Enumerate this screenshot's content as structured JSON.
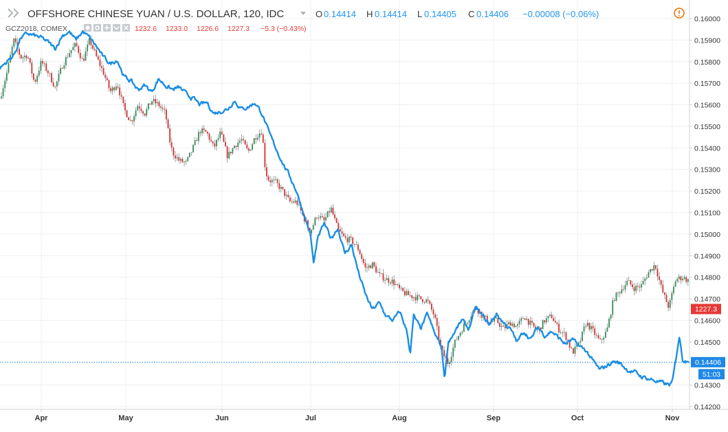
{
  "colors": {
    "primary_line": "#1a8ee3",
    "gold_up": "#2e8b57",
    "gold_down": "#d32f2f",
    "gold_wick": "#7a7a7a",
    "grid": "#eef0f2",
    "axis": "#cfd2d6",
    "cur_price_tag": "#1e88e5",
    "gold_tag": "#e53935",
    "warning": "#ef6c00"
  },
  "header": {
    "symbol": "OFFSHORE CHINESE YUAN / U.S. DOLLAR, 120, IDC",
    "o_label": "O",
    "o_value": "0.14414",
    "h_label": "H",
    "h_value": "0.14414",
    "l_label": "L",
    "l_value": "0.14405",
    "c_label": "C",
    "c_value": "0.14406",
    "change": "−0.00008 (−0.06%)"
  },
  "overlay": {
    "symbol": "GCZ2018, COMEX",
    "open": "1232.6",
    "high": "1233.0",
    "low": "1226.6",
    "close": "1227.3",
    "change": "−5.3 (−0.43%)"
  },
  "tags": {
    "gold_last": "1227.3",
    "current_price": "0.14406",
    "countdown": "51:03"
  },
  "chart_data": {
    "type": "line",
    "x_axis_labels": [
      "Apr",
      "May",
      "Jun",
      "Jul",
      "Aug",
      "Sep",
      "Oct",
      "Nov"
    ],
    "y_ticks": [
      "0.16000",
      "0.15900",
      "0.15800",
      "0.15700",
      "0.15600",
      "0.15500",
      "0.15400",
      "0.15300",
      "0.15200",
      "0.15100",
      "0.15000",
      "0.14900",
      "0.14800",
      "0.14700",
      "0.14600",
      "0.14500",
      "0.14400",
      "0.14300",
      "0.14200"
    ],
    "ylim": [
      0.142,
      0.16
    ],
    "current_value": 0.14406,
    "grid": true,
    "series": [
      {
        "name": "OFFSHORE CHINESE YUAN / U.S. DOLLAR, 120, IDC",
        "style": "line",
        "points": [
          [
            0,
            0.1577
          ],
          [
            10,
            0.158
          ],
          [
            20,
            0.1583
          ],
          [
            30,
            0.1591
          ],
          [
            40,
            0.1593
          ],
          [
            50,
            0.1592
          ],
          [
            60,
            0.1591
          ],
          [
            70,
            0.1589
          ],
          [
            80,
            0.1586
          ],
          [
            90,
            0.1592
          ],
          [
            100,
            0.1594
          ],
          [
            110,
            0.159
          ],
          [
            120,
            0.1594
          ],
          [
            130,
            0.1591
          ],
          [
            140,
            0.1587
          ],
          [
            150,
            0.1582
          ],
          [
            160,
            0.1579
          ],
          [
            170,
            0.1581
          ],
          [
            180,
            0.1573
          ],
          [
            190,
            0.1571
          ],
          [
            200,
            0.1567
          ],
          [
            210,
            0.1569
          ],
          [
            220,
            0.1566
          ],
          [
            230,
            0.1572
          ],
          [
            240,
            0.1569
          ],
          [
            250,
            0.1567
          ],
          [
            260,
            0.1568
          ],
          [
            270,
            0.1565
          ],
          [
            280,
            0.1563
          ],
          [
            290,
            0.156
          ],
          [
            300,
            0.1561
          ],
          [
            310,
            0.1556
          ],
          [
            320,
            0.1557
          ],
          [
            330,
            0.1558
          ],
          [
            340,
            0.1562
          ],
          [
            350,
            0.1558
          ],
          [
            360,
            0.1559
          ],
          [
            370,
            0.1561
          ],
          [
            380,
            0.1556
          ],
          [
            390,
            0.1547
          ],
          [
            400,
            0.154
          ],
          [
            410,
            0.1533
          ],
          [
            420,
            0.1527
          ],
          [
            430,
            0.152
          ],
          [
            440,
            0.151
          ],
          [
            450,
            0.15
          ],
          [
            455,
            0.1486
          ],
          [
            460,
            0.1497
          ],
          [
            470,
            0.1505
          ],
          [
            480,
            0.1498
          ],
          [
            490,
            0.1503
          ],
          [
            500,
            0.1491
          ],
          [
            510,
            0.1495
          ],
          [
            520,
            0.1482
          ],
          [
            530,
            0.1472
          ],
          [
            540,
            0.1465
          ],
          [
            550,
            0.1468
          ],
          [
            560,
            0.1462
          ],
          [
            570,
            0.146
          ],
          [
            580,
            0.1464
          ],
          [
            590,
            0.1455
          ],
          [
            595,
            0.1445
          ],
          [
            600,
            0.1462
          ],
          [
            610,
            0.1456
          ],
          [
            620,
            0.1463
          ],
          [
            630,
            0.1454
          ],
          [
            640,
            0.1448
          ],
          [
            645,
            0.1433
          ],
          [
            650,
            0.145
          ],
          [
            660,
            0.1455
          ],
          [
            670,
            0.146
          ],
          [
            680,
            0.1456
          ],
          [
            690,
            0.1466
          ],
          [
            700,
            0.1462
          ],
          [
            710,
            0.1458
          ],
          [
            720,
            0.1463
          ],
          [
            730,
            0.1459
          ],
          [
            740,
            0.1456
          ],
          [
            750,
            0.145
          ],
          [
            760,
            0.1455
          ],
          [
            770,
            0.1451
          ],
          [
            780,
            0.1457
          ],
          [
            790,
            0.1453
          ],
          [
            800,
            0.1455
          ],
          [
            810,
            0.1452
          ],
          [
            820,
            0.1449
          ],
          [
            830,
            0.1451
          ],
          [
            840,
            0.1448
          ],
          [
            850,
            0.1446
          ],
          [
            860,
            0.1441
          ],
          [
            870,
            0.1437
          ],
          [
            880,
            0.1439
          ],
          [
            890,
            0.1441
          ],
          [
            900,
            0.144
          ],
          [
            910,
            0.1437
          ],
          [
            920,
            0.1436
          ],
          [
            930,
            0.1434
          ],
          [
            940,
            0.1433
          ],
          [
            950,
            0.1432
          ],
          [
            960,
            0.1431
          ],
          [
            970,
            0.143
          ],
          [
            975,
            0.1431
          ],
          [
            980,
            0.1441
          ],
          [
            985,
            0.1453
          ],
          [
            990,
            0.1442
          ],
          [
            1000,
            0.14406
          ]
        ]
      },
      {
        "name": "GCZ2018, COMEX",
        "style": "candlestick",
        "points": [
          [
            0,
            0.1563
          ],
          [
            10,
            0.1575
          ],
          [
            20,
            0.159
          ],
          [
            30,
            0.1582
          ],
          [
            40,
            0.1583
          ],
          [
            50,
            0.157
          ],
          [
            60,
            0.158
          ],
          [
            70,
            0.1575
          ],
          [
            80,
            0.1568
          ],
          [
            90,
            0.1578
          ],
          [
            100,
            0.1584
          ],
          [
            110,
            0.1588
          ],
          [
            120,
            0.158
          ],
          [
            130,
            0.159
          ],
          [
            140,
            0.1582
          ],
          [
            150,
            0.1575
          ],
          [
            160,
            0.1566
          ],
          [
            170,
            0.157
          ],
          [
            180,
            0.1558
          ],
          [
            190,
            0.1552
          ],
          [
            200,
            0.156
          ],
          [
            210,
            0.1556
          ],
          [
            220,
            0.1562
          ],
          [
            230,
            0.156
          ],
          [
            240,
            0.1556
          ],
          [
            245,
            0.1545
          ],
          [
            250,
            0.1538
          ],
          [
            260,
            0.1534
          ],
          [
            270,
            0.1533
          ],
          [
            280,
            0.154
          ],
          [
            290,
            0.1548
          ],
          [
            300,
            0.1547
          ],
          [
            310,
            0.154
          ],
          [
            320,
            0.1547
          ],
          [
            330,
            0.1536
          ],
          [
            340,
            0.1541
          ],
          [
            350,
            0.1544
          ],
          [
            360,
            0.1538
          ],
          [
            370,
            0.1545
          ],
          [
            380,
            0.1548
          ],
          [
            385,
            0.1529
          ],
          [
            390,
            0.1525
          ],
          [
            400,
            0.1524
          ],
          [
            410,
            0.152
          ],
          [
            420,
            0.1515
          ],
          [
            430,
            0.1515
          ],
          [
            440,
            0.1508
          ],
          [
            450,
            0.1501
          ],
          [
            460,
            0.1509
          ],
          [
            470,
            0.1506
          ],
          [
            480,
            0.1512
          ],
          [
            490,
            0.1502
          ],
          [
            500,
            0.1498
          ],
          [
            510,
            0.1497
          ],
          [
            520,
            0.1493
          ],
          [
            530,
            0.1484
          ],
          [
            540,
            0.1486
          ],
          [
            550,
            0.1481
          ],
          [
            560,
            0.1479
          ],
          [
            570,
            0.1478
          ],
          [
            580,
            0.1474
          ],
          [
            590,
            0.1472
          ],
          [
            600,
            0.1471
          ],
          [
            610,
            0.147
          ],
          [
            620,
            0.1469
          ],
          [
            630,
            0.1462
          ],
          [
            640,
            0.1446
          ],
          [
            650,
            0.144
          ],
          [
            660,
            0.145
          ],
          [
            670,
            0.1456
          ],
          [
            680,
            0.1461
          ],
          [
            690,
            0.1466
          ],
          [
            700,
            0.1462
          ],
          [
            710,
            0.1459
          ],
          [
            720,
            0.146
          ],
          [
            730,
            0.1456
          ],
          [
            740,
            0.1459
          ],
          [
            750,
            0.1457
          ],
          [
            760,
            0.1462
          ],
          [
            770,
            0.1458
          ],
          [
            780,
            0.1455
          ],
          [
            790,
            0.146
          ],
          [
            800,
            0.1462
          ],
          [
            810,
            0.1456
          ],
          [
            820,
            0.1453
          ],
          [
            830,
            0.1445
          ],
          [
            840,
            0.1449
          ],
          [
            850,
            0.1459
          ],
          [
            860,
            0.1455
          ],
          [
            870,
            0.145
          ],
          [
            880,
            0.1455
          ],
          [
            890,
            0.147
          ],
          [
            900,
            0.1474
          ],
          [
            910,
            0.1478
          ],
          [
            920,
            0.1475
          ],
          [
            930,
            0.1476
          ],
          [
            940,
            0.1482
          ],
          [
            950,
            0.1486
          ],
          [
            960,
            0.1474
          ],
          [
            970,
            0.1466
          ],
          [
            980,
            0.1479
          ],
          [
            990,
            0.148
          ],
          [
            1000,
            0.1478
          ]
        ]
      }
    ]
  }
}
